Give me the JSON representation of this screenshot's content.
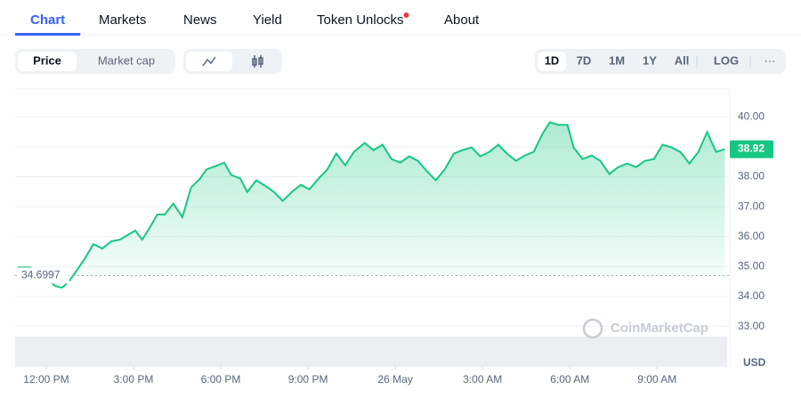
{
  "tabs": [
    "Chart",
    "Markets",
    "News",
    "Yield",
    "Token Unlocks",
    "About"
  ],
  "toggle": [
    "Price",
    "Market cap"
  ],
  "ranges": [
    "1D",
    "7D",
    "1M",
    "1Y",
    "All",
    "LOG"
  ],
  "more": "···",
  "watermark": "CoinMarketCap",
  "chart_data": {
    "type": "line",
    "x": [
      -0.98,
      -0.55,
      -0.06,
      0.31,
      0.55,
      0.8,
      1.01,
      1.31,
      1.62,
      1.93,
      2.23,
      2.54,
      2.84,
      3.06,
      3.3,
      3.55,
      3.82,
      4.07,
      4.37,
      4.68,
      4.98,
      5.29,
      5.5,
      5.81,
      6.12,
      6.36,
      6.67,
      6.91,
      7.22,
      7.52,
      7.83,
      8.13,
      8.44,
      8.75,
      9.05,
      9.36,
      9.66,
      9.97,
      10.28,
      10.58,
      10.95,
      11.25,
      11.56,
      11.87,
      12.17,
      12.48,
      12.78,
      13.09,
      13.39,
      13.7,
      14.01,
      14.31,
      14.62,
      14.92,
      15.23,
      15.54,
      15.84,
      16.15,
      16.45,
      16.76,
      17.06,
      17.31,
      17.61,
      17.92,
      18.13,
      18.44,
      18.75,
      19.05,
      19.36,
      19.66,
      19.97,
      20.28,
      20.58,
      20.89,
      21.19,
      21.5,
      21.8,
      22.11,
      22.42,
      22.72,
      23.03,
      23.33
    ],
    "series": [
      {
        "color": "#16c784",
        "values": [
          34.97,
          34.97,
          34.65,
          34.35,
          34.29,
          34.53,
          34.82,
          35.24,
          35.75,
          35.6,
          35.84,
          35.9,
          36.08,
          36.2,
          35.9,
          36.29,
          36.74,
          36.74,
          37.1,
          36.65,
          37.64,
          37.94,
          38.24,
          38.35,
          38.47,
          38.06,
          37.94,
          37.49,
          37.88,
          37.7,
          37.49,
          37.19,
          37.49,
          37.73,
          37.58,
          37.94,
          38.24,
          38.77,
          38.38,
          38.83,
          39.13,
          38.89,
          39.07,
          38.59,
          38.47,
          38.68,
          38.53,
          38.18,
          37.88,
          38.24,
          38.77,
          38.89,
          38.98,
          38.68,
          38.83,
          39.07,
          38.77,
          38.53,
          38.71,
          38.83,
          39.43,
          39.82,
          39.73,
          39.73,
          38.98,
          38.59,
          38.71,
          38.53,
          38.09,
          38.32,
          38.44,
          38.32,
          38.53,
          38.59,
          39.07,
          38.98,
          38.83,
          38.44,
          38.83,
          39.49,
          38.83,
          38.92
        ]
      }
    ],
    "xlim": [
      -1.07,
      23.5
    ],
    "ylim": [
      31.65,
      40.93
    ],
    "xticks": [
      {
        "value": 0,
        "label": "12:00 PM"
      },
      {
        "value": 3,
        "label": "3:00 PM"
      },
      {
        "value": 6,
        "label": "6:00 PM"
      },
      {
        "value": 9,
        "label": "9:00 PM"
      },
      {
        "value": 12,
        "label": "26 May"
      },
      {
        "value": 15,
        "label": "3:00 AM"
      },
      {
        "value": 18,
        "label": "6:00 AM"
      },
      {
        "value": 21,
        "label": "9:00 AM"
      }
    ],
    "yticks": [
      {
        "value": 33,
        "label": "33.00"
      },
      {
        "value": 34,
        "label": "34.00"
      },
      {
        "value": 35,
        "label": "35.00"
      },
      {
        "value": 36,
        "label": "36.00"
      },
      {
        "value": 37,
        "label": "37.00"
      },
      {
        "value": 38,
        "label": "38.00"
      },
      {
        "value": 39,
        "label": "39.00"
      },
      {
        "value": 40,
        "label": "40.00"
      }
    ],
    "reference_line": 34.6997,
    "y_unit": "USD",
    "grid": true
  }
}
